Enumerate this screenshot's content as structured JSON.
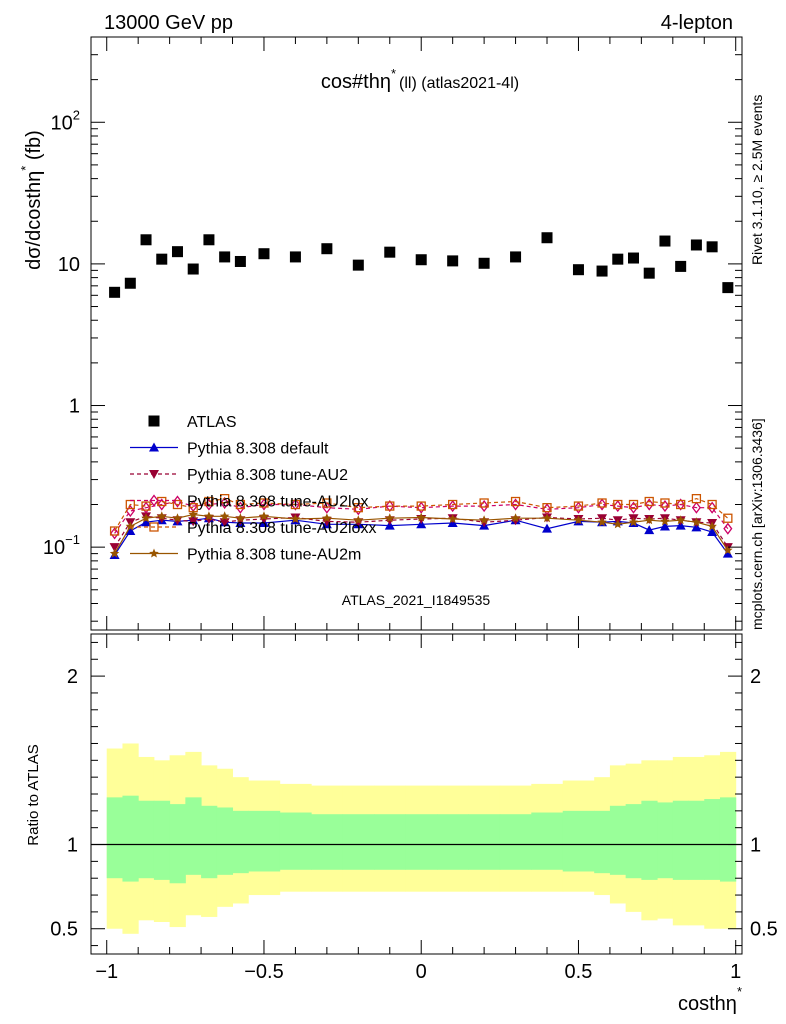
{
  "header": {
    "left": "13000 GeV pp",
    "right": "4-lepton"
  },
  "side_labels": {
    "rivet": "Rivet 3.1.10, ≥ 2.5M events",
    "mcplots": "mcplots.cern.ch [arXiv:1306.3436]"
  },
  "chart_data": [
    {
      "type": "scatter",
      "title": "cos#thη* (ll) (atlas2021-4l)",
      "title_main": "cos#thη",
      "title_sup": "*",
      "title_rest": "(ll) (atlas2021-4l)",
      "ylabel": "dσ/dcosthη* (fb)",
      "ylabel_main": "dσ/dcosthη",
      "ylabel_sup": "*",
      "ylabel_rest": " (fb)",
      "yscale": "log",
      "xlim": [
        -1.05,
        1.02
      ],
      "ylim": [
        0.026,
        400
      ],
      "ytick_labels": [
        {
          "value": 0.1,
          "base": "10",
          "exp": "−1"
        },
        {
          "value": 1,
          "base": "1",
          "exp": ""
        },
        {
          "value": 10,
          "base": "10",
          "exp": ""
        },
        {
          "value": 100,
          "base": "10",
          "exp": "2"
        }
      ],
      "watermark": "ATLAS_2021_I1849535",
      "legend_position": "lower-left",
      "x": [
        -0.975,
        -0.925,
        -0.875,
        -0.825,
        -0.775,
        -0.725,
        -0.675,
        -0.625,
        -0.575,
        -0.5,
        -0.4,
        -0.3,
        -0.2,
        -0.1,
        0.0,
        0.1,
        0.2,
        0.3,
        0.4,
        0.5,
        0.575,
        0.625,
        0.675,
        0.725,
        0.775,
        0.825,
        0.875,
        0.925,
        0.975
      ],
      "series": [
        {
          "name": "ATLAS",
          "color": "#000000",
          "marker": "square",
          "line": "none",
          "values": [
            6.3,
            7.3,
            14.8,
            10.8,
            12.2,
            9.2,
            14.8,
            11.2,
            10.4,
            11.8,
            11.2,
            12.8,
            9.8,
            12.1,
            10.7,
            10.5,
            10.1,
            11.2,
            15.3,
            9.1,
            8.9,
            10.8,
            11.0,
            8.6,
            14.5,
            9.6,
            13.6,
            13.2,
            6.8
          ]
        },
        {
          "name": "Pythia 8.308 default",
          "color": "#0000cc",
          "marker": "triangle-up",
          "line": "solid",
          "values": [
            0.088,
            0.13,
            0.15,
            0.155,
            0.152,
            0.155,
            0.16,
            0.15,
            0.148,
            0.148,
            0.155,
            0.145,
            0.145,
            0.142,
            0.145,
            0.148,
            0.142,
            0.155,
            0.135,
            0.152,
            0.15,
            0.152,
            0.148,
            0.132,
            0.14,
            0.142,
            0.138,
            0.128,
            0.09
          ]
        },
        {
          "name": "Pythia 8.308 tune-AU2",
          "color": "#990033",
          "marker": "triangle-down",
          "line": "dashed",
          "values": [
            0.1,
            0.15,
            0.165,
            0.16,
            0.155,
            0.152,
            0.158,
            0.15,
            0.155,
            0.158,
            0.162,
            0.152,
            0.15,
            0.155,
            0.158,
            0.16,
            0.15,
            0.155,
            0.162,
            0.158,
            0.16,
            0.155,
            0.16,
            0.158,
            0.16,
            0.155,
            0.15,
            0.148,
            0.1
          ]
        },
        {
          "name": "Pythia 8.308 tune-AU2lox",
          "color": "#cc0066",
          "marker": "diamond-open",
          "line": "dashed",
          "values": [
            0.125,
            0.18,
            0.19,
            0.2,
            0.21,
            0.195,
            0.2,
            0.205,
            0.19,
            0.2,
            0.2,
            0.19,
            0.185,
            0.195,
            0.19,
            0.195,
            0.195,
            0.2,
            0.185,
            0.19,
            0.2,
            0.195,
            0.19,
            0.2,
            0.195,
            0.2,
            0.19,
            0.19,
            0.135
          ]
        },
        {
          "name": "Pythia 8.308 tune-AU2loxx",
          "color": "#cc5500",
          "marker": "square-open",
          "line": "dashed",
          "values": [
            0.13,
            0.2,
            0.195,
            0.21,
            0.2,
            0.19,
            0.21,
            0.22,
            0.2,
            0.205,
            0.2,
            0.205,
            0.19,
            0.195,
            0.195,
            0.2,
            0.205,
            0.21,
            0.19,
            0.195,
            0.205,
            0.2,
            0.2,
            0.21,
            0.205,
            0.2,
            0.22,
            0.2,
            0.16
          ]
        },
        {
          "name": "Pythia 8.308 tune-AU2m",
          "color": "#995500",
          "marker": "star",
          "line": "solid",
          "values": [
            0.09,
            0.14,
            0.16,
            0.165,
            0.16,
            0.17,
            0.165,
            0.165,
            0.16,
            0.165,
            0.158,
            0.16,
            0.155,
            0.16,
            0.162,
            0.158,
            0.155,
            0.16,
            0.16,
            0.155,
            0.15,
            0.145,
            0.15,
            0.155,
            0.152,
            0.155,
            0.15,
            0.14,
            0.095
          ]
        }
      ]
    },
    {
      "type": "area",
      "ylabel": "Ratio to ATLAS",
      "xlabel": "costhη*",
      "xlabel_main": "costhη",
      "xlabel_sup": "*",
      "xlim": [
        -1.05,
        1.02
      ],
      "ylim": [
        0.35,
        2.25
      ],
      "ytick_labels": [
        "0.5",
        "1",
        "2"
      ],
      "yticks": [
        0.5,
        1,
        2
      ],
      "xtick_labels": [
        "−1",
        "−0.5",
        "0",
        "0.5",
        "1"
      ],
      "xticks": [
        -1,
        -0.5,
        0,
        0.5,
        1
      ],
      "reference_line": 1,
      "bin_edges": [
        -1.0,
        -0.95,
        -0.9,
        -0.85,
        -0.8,
        -0.75,
        -0.7,
        -0.65,
        -0.6,
        -0.55,
        -0.45,
        -0.35,
        -0.25,
        -0.15,
        -0.05,
        0.05,
        0.15,
        0.25,
        0.35,
        0.45,
        0.55,
        0.6,
        0.65,
        0.7,
        0.75,
        0.8,
        0.85,
        0.9,
        0.95,
        1.0
      ],
      "band_outer": {
        "color": "#ffff99",
        "upper": [
          1.57,
          1.6,
          1.52,
          1.5,
          1.53,
          1.55,
          1.47,
          1.45,
          1.4,
          1.38,
          1.36,
          1.35,
          1.35,
          1.35,
          1.35,
          1.35,
          1.35,
          1.35,
          1.36,
          1.38,
          1.4,
          1.47,
          1.48,
          1.5,
          1.5,
          1.52,
          1.52,
          1.53,
          1.55
        ],
        "lower": [
          0.5,
          0.47,
          0.55,
          0.54,
          0.51,
          0.58,
          0.57,
          0.63,
          0.65,
          0.7,
          0.72,
          0.72,
          0.72,
          0.72,
          0.72,
          0.72,
          0.72,
          0.72,
          0.72,
          0.72,
          0.7,
          0.65,
          0.6,
          0.55,
          0.56,
          0.52,
          0.52,
          0.5,
          0.5
        ]
      },
      "band_inner": {
        "color": "#99ff99",
        "upper": [
          1.28,
          1.29,
          1.26,
          1.26,
          1.24,
          1.28,
          1.23,
          1.22,
          1.2,
          1.2,
          1.19,
          1.18,
          1.18,
          1.18,
          1.18,
          1.18,
          1.18,
          1.18,
          1.19,
          1.2,
          1.2,
          1.23,
          1.24,
          1.26,
          1.25,
          1.26,
          1.26,
          1.27,
          1.28
        ],
        "lower": [
          0.8,
          0.78,
          0.8,
          0.79,
          0.77,
          0.82,
          0.8,
          0.82,
          0.83,
          0.84,
          0.85,
          0.85,
          0.85,
          0.85,
          0.85,
          0.85,
          0.85,
          0.85,
          0.85,
          0.84,
          0.83,
          0.82,
          0.8,
          0.79,
          0.8,
          0.79,
          0.79,
          0.79,
          0.78
        ]
      }
    }
  ]
}
